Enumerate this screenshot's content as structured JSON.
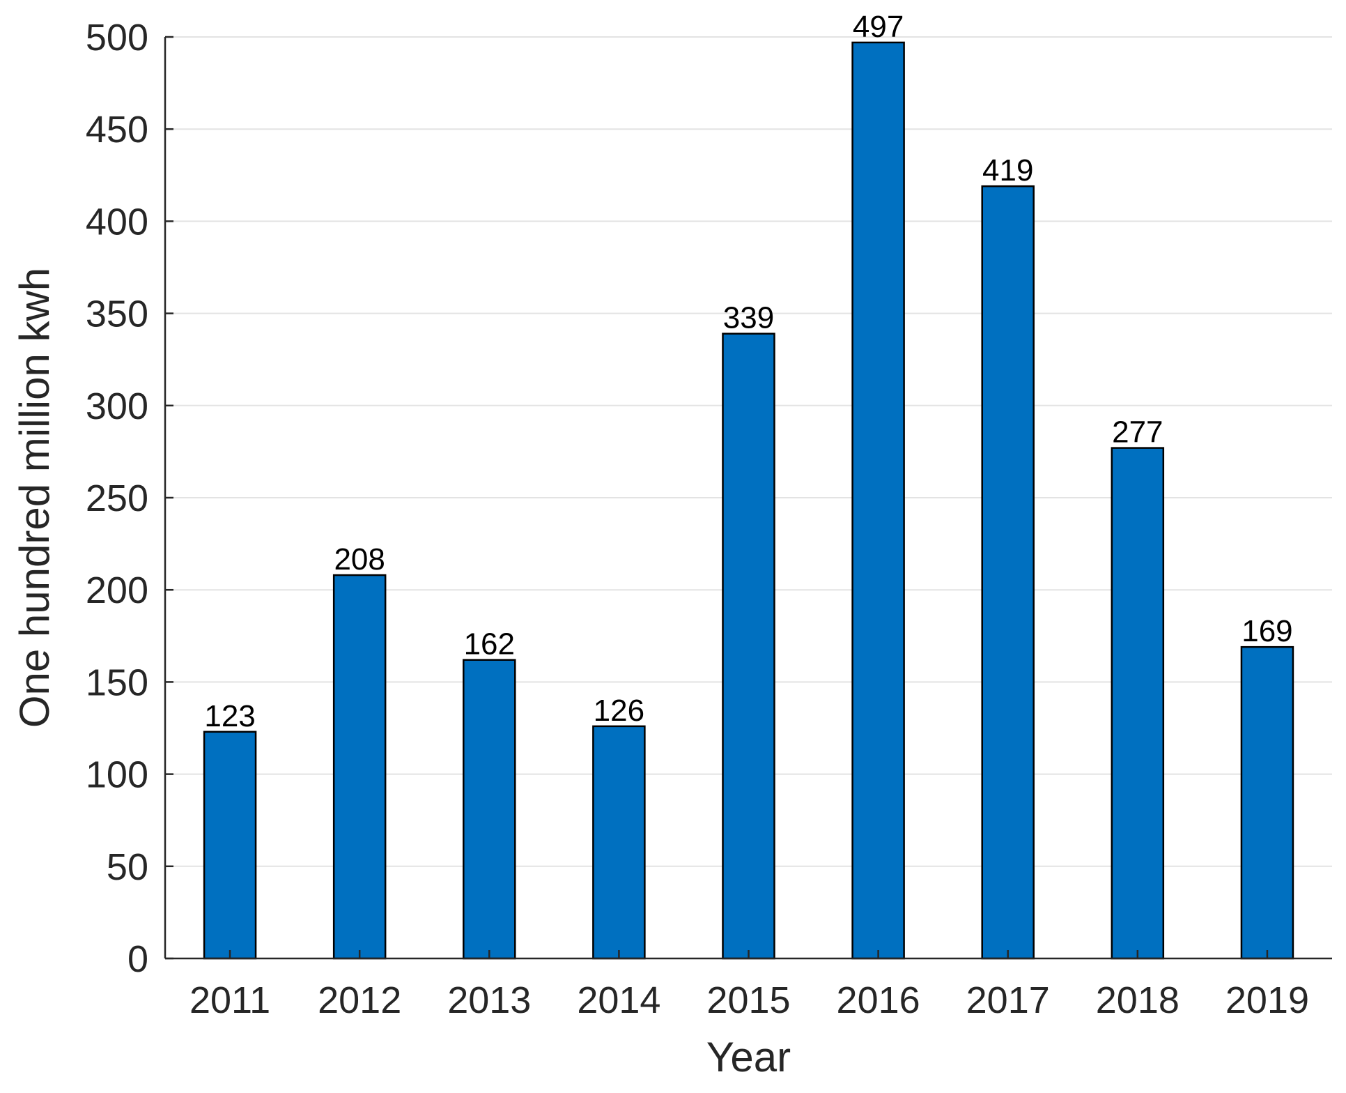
{
  "chart_data": {
    "type": "bar",
    "categories": [
      "2011",
      "2012",
      "2013",
      "2014",
      "2015",
      "2016",
      "2017",
      "2018",
      "2019"
    ],
    "values": [
      123,
      208,
      162,
      126,
      339,
      497,
      419,
      277,
      169
    ],
    "data_labels": [
      "123",
      "208",
      "162",
      "126",
      "339",
      "497",
      "419",
      "277",
      "169"
    ],
    "xlabel": "Year",
    "ylabel": "One hundred million kwh",
    "ylim": [
      0,
      500
    ],
    "yticks": [
      0,
      50,
      100,
      150,
      200,
      250,
      300,
      350,
      400,
      450,
      500
    ],
    "ytick_labels": [
      "0",
      "50",
      "100",
      "150",
      "200",
      "250",
      "300",
      "350",
      "400",
      "450",
      "500"
    ],
    "grid": true,
    "bar_color": "#0070C0",
    "edge_color": "#000000"
  }
}
